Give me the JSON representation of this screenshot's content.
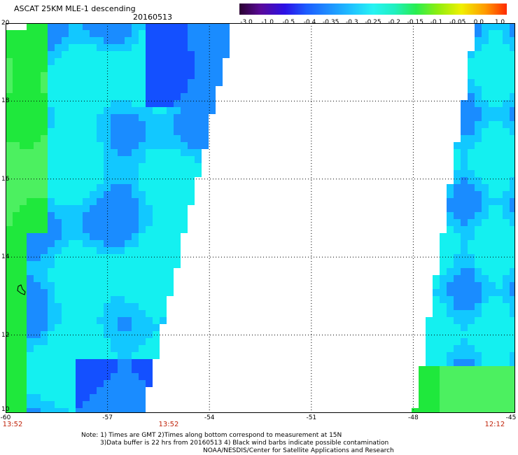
{
  "header": {
    "title": "ASCAT 25KM MLE-1 descending",
    "date": "20160513"
  },
  "colorbar": {
    "ticks": [
      "-3.0",
      "-1.0",
      "-0.5",
      "-0.4",
      "-0.35",
      "-0.3",
      "-0.25",
      "-0.2",
      "-0.15",
      "-0.1",
      "-0.05",
      "0.0",
      "1.0"
    ],
    "colors": [
      "#2a0030",
      "#5a0a9a",
      "#2b10e6",
      "#1c5cff",
      "#1e8cff",
      "#1fc2ff",
      "#26f3f3",
      "#20f0c0",
      "#28ee50",
      "#8cee10",
      "#f0f000",
      "#ff9a00",
      "#ff2a00"
    ]
  },
  "map": {
    "y_labels": [
      "20",
      "18",
      "16",
      "14",
      "12",
      "10"
    ],
    "x_labels": [
      "-60",
      "-57",
      "-54",
      "-51",
      "-48",
      "-45"
    ],
    "time_labels": [
      {
        "text": "13:52",
        "lon": -60
      },
      {
        "text": "13:52",
        "lon": -55.2
      },
      {
        "text": "12:12",
        "lon": -45.6
      }
    ],
    "lon_range": [
      -60,
      -45
    ],
    "lat_range": [
      10,
      20
    ],
    "grid": true,
    "swath_colors": {
      "green": "#1fe83c",
      "lightgreen": "#4cf060",
      "cyan": "#14f0f0",
      "lightblue": "#12c8ff",
      "blue": "#1a8cff",
      "darkblue": "#1450ff"
    }
  },
  "notes": {
    "line1": "Note: 1) Times are GMT 2)Times along bottom correspond to measurement at 15N",
    "line2": "3)Data buffer is 22 hrs from 20160513 4) Black wind barbs indicate possible contamination",
    "line3": "NOAA/NESDIS/Center for Satellite Applications and Research"
  }
}
